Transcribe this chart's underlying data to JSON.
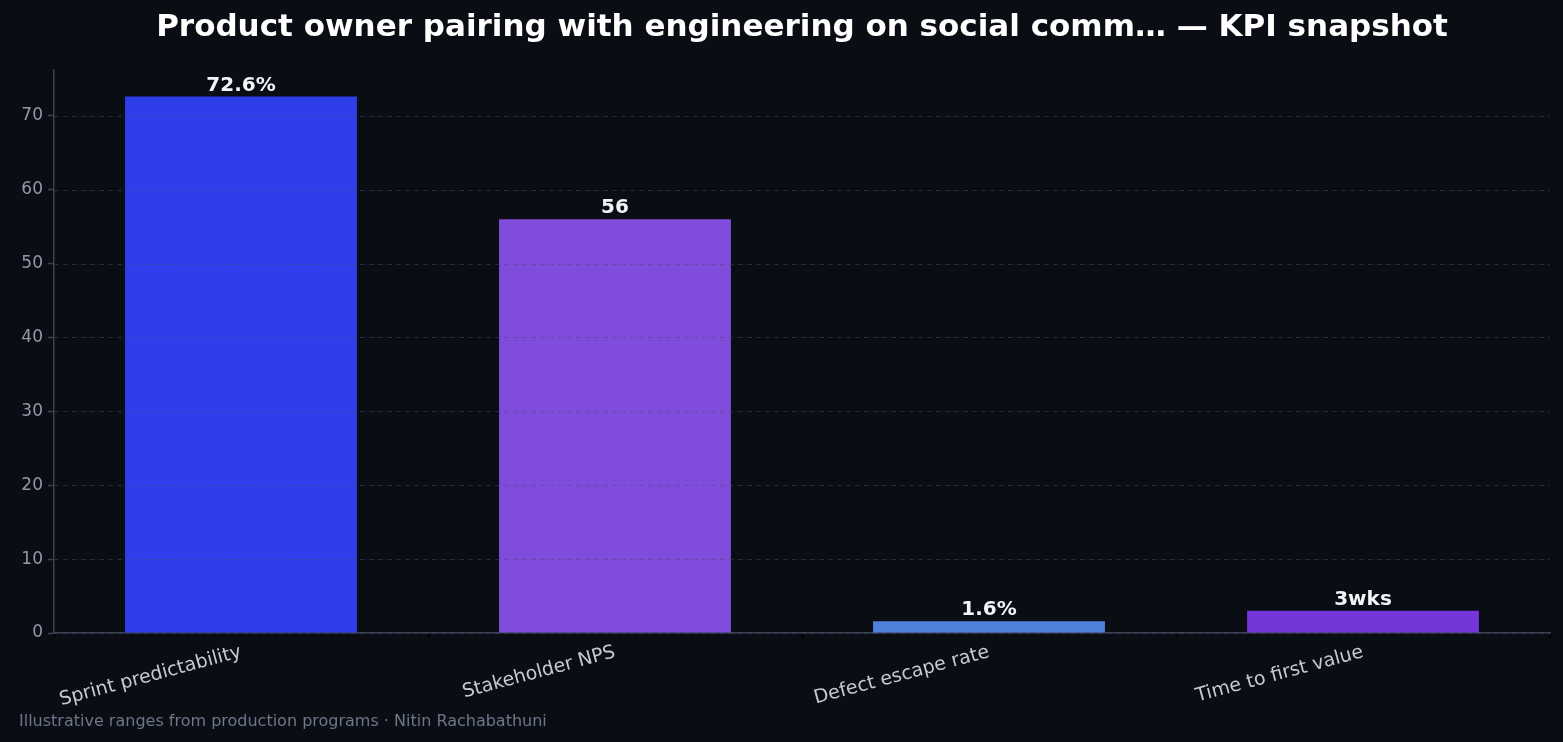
{
  "chart_data": {
    "type": "bar",
    "title": "Product owner pairing with engineering on social comm… — KPI snapshot",
    "categories": [
      "Sprint predictability",
      "Stakeholder NPS",
      "Defect escape rate",
      "Time to first value"
    ],
    "values": [
      72.6,
      56,
      1.6,
      3
    ],
    "colors": [
      "#2d3eea",
      "#7f4cdb",
      "#5080dc",
      "#7435d9"
    ],
    "value_labels": [
      "72.6%",
      "56",
      "1.6%",
      "3wks"
    ],
    "ylim": [
      0,
      76.2
    ],
    "yticks": [
      0,
      10,
      20,
      30,
      40,
      50,
      60,
      70
    ],
    "grid": "y",
    "annotations": [
      "Illustrative ranges from production programs · Nitin Rachabathuni"
    ]
  }
}
